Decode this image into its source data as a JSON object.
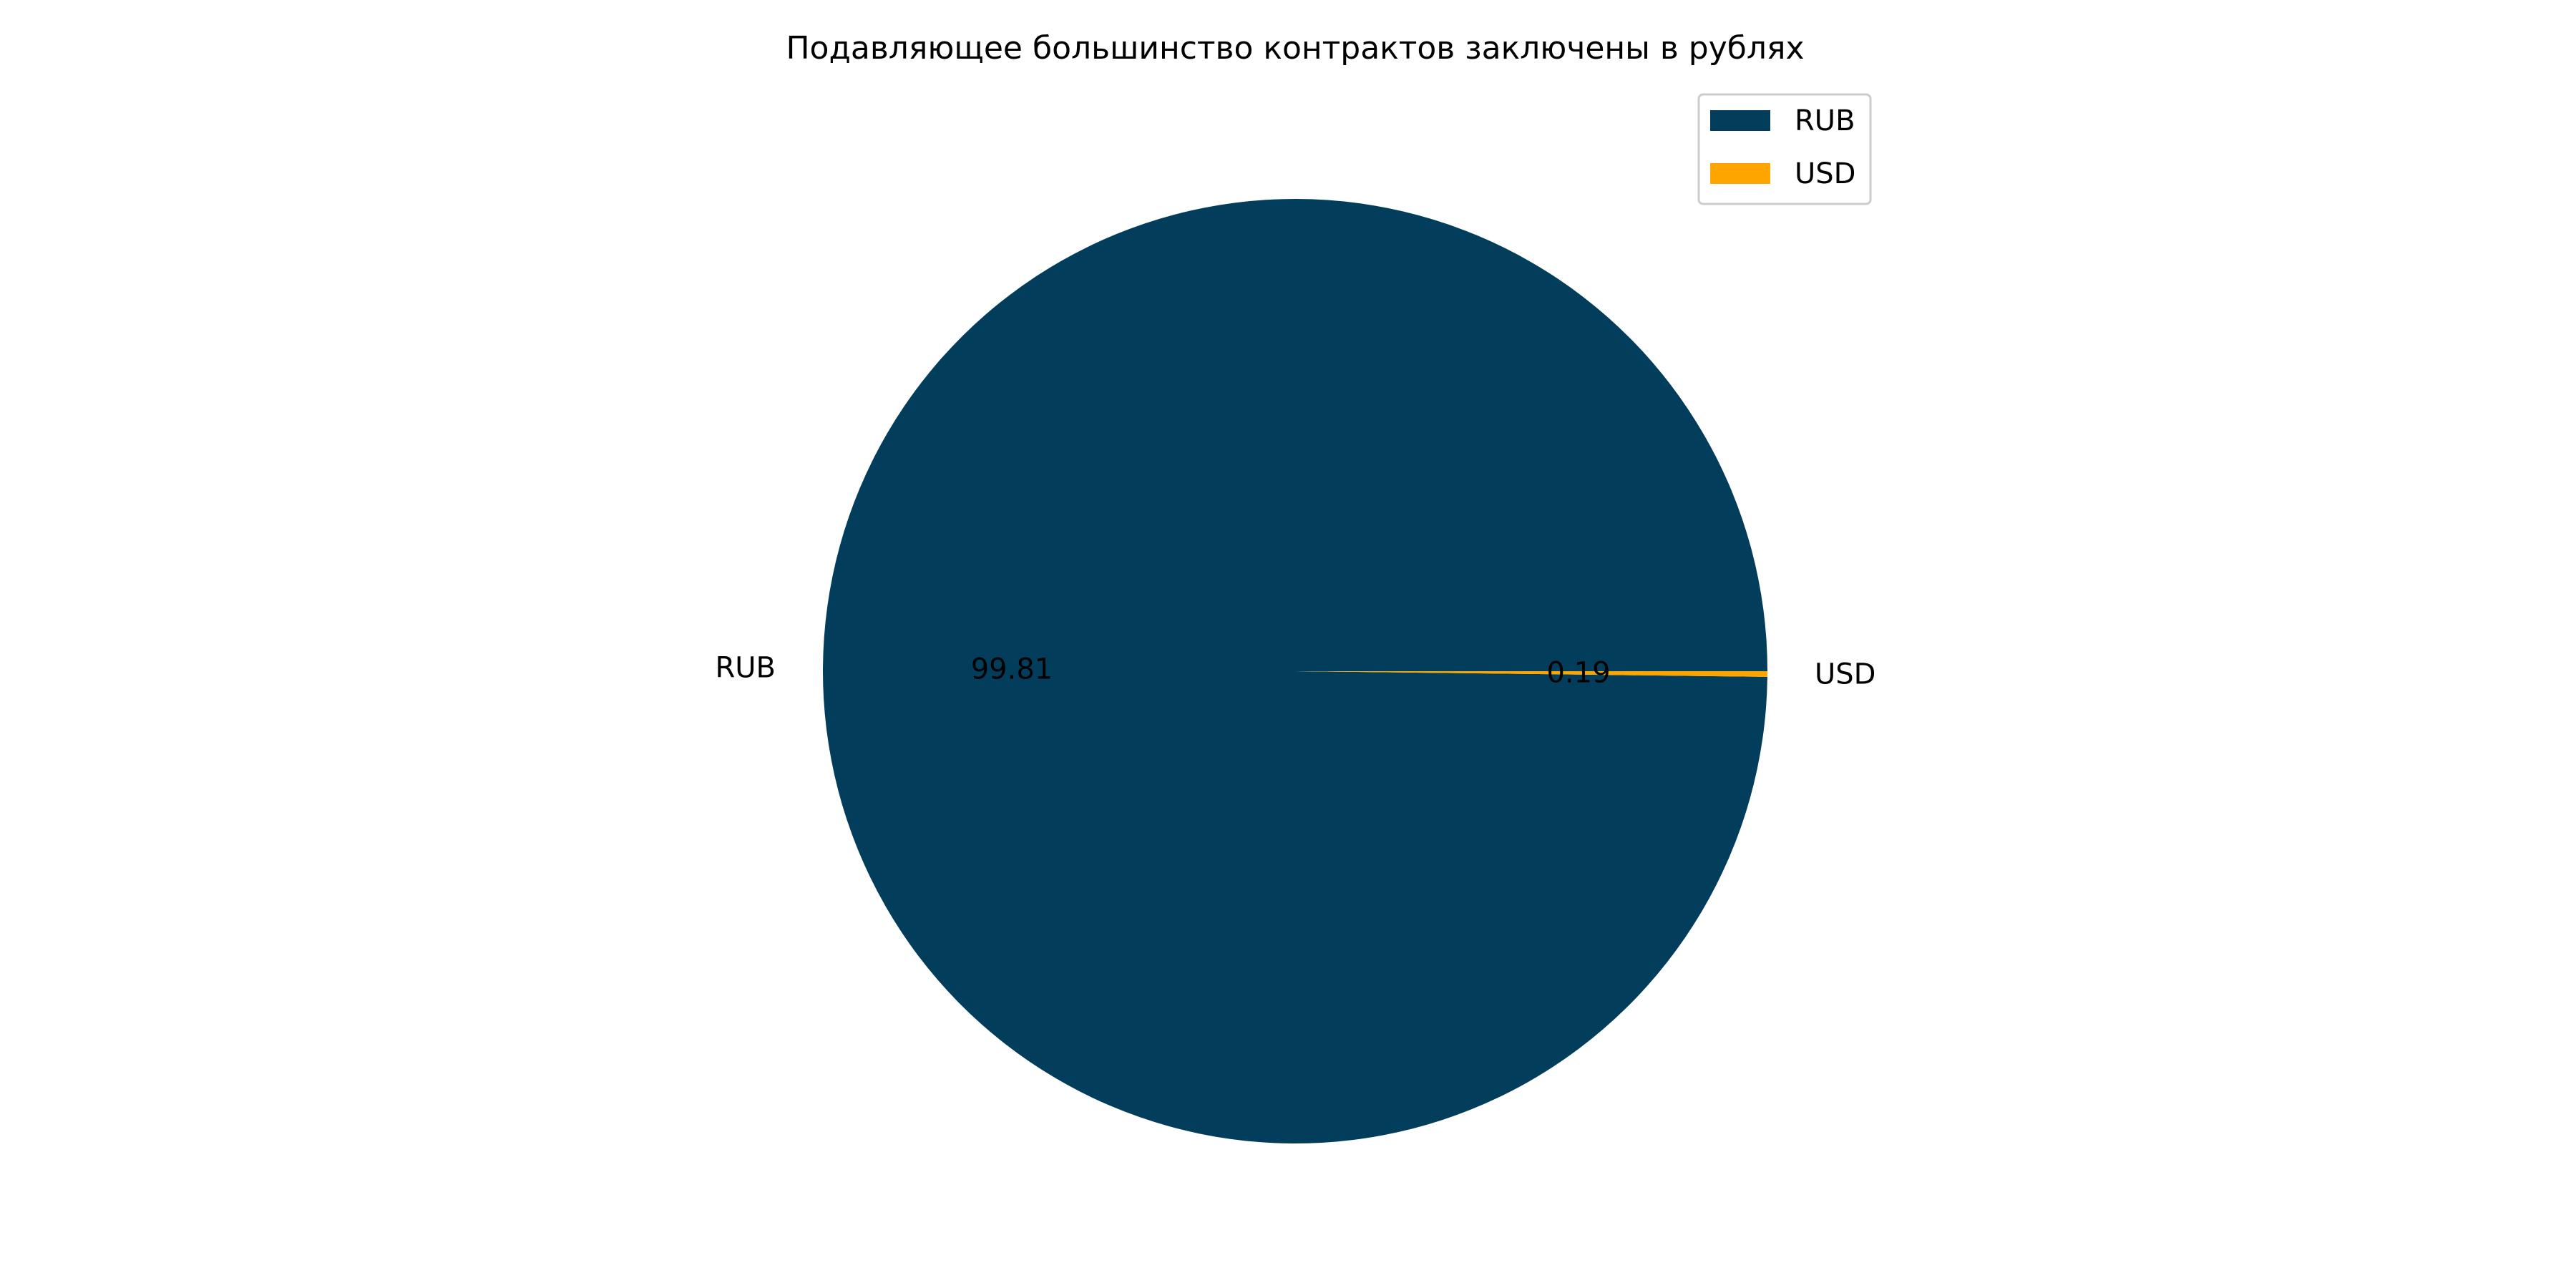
{
  "chart_data": {
    "type": "pie",
    "title": "Подавляющее большинство контрактов заключены в рублях",
    "categories": [
      "RUB",
      "USD"
    ],
    "values": [
      99.81,
      0.19
    ],
    "value_labels": [
      "99.81",
      "0.19"
    ],
    "colors": [
      "#023E5C",
      "#FFA500"
    ],
    "start_angle_deg": 0,
    "direction": "counterclockwise",
    "legend": {
      "position": "top-right",
      "entries": [
        "RUB",
        "USD"
      ]
    }
  }
}
